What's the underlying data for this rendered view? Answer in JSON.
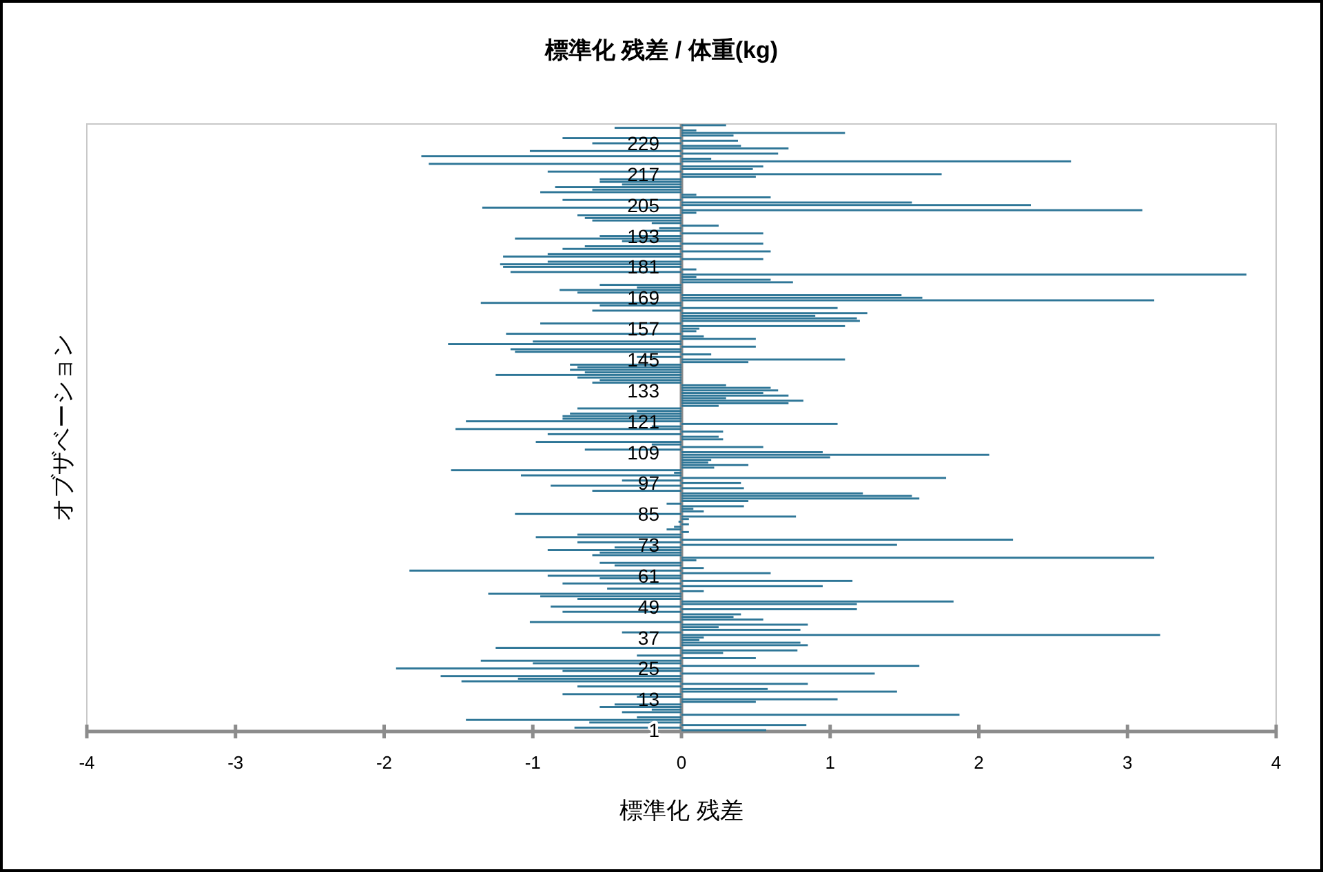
{
  "chart_data": {
    "type": "bar",
    "orientation": "horizontal",
    "title": "標準化 残差 / 体重(kg)",
    "xlabel": "標準化 残差",
    "ylabel": "オブザベーション",
    "color": "#2e7697",
    "xlim": [
      -4,
      4
    ],
    "xticks": [
      -4,
      -3,
      -2,
      -1,
      0,
      1,
      2,
      3,
      4
    ],
    "categories": [
      null,
      null,
      null,
      null,
      null,
      null,
      null,
      "229",
      null,
      null,
      null,
      null,
      null,
      null,
      null,
      null,
      null,
      null,
      null,
      "217",
      null,
      null,
      null,
      null,
      null,
      null,
      null,
      null,
      null,
      null,
      null,
      "205",
      null,
      null,
      null,
      null,
      null,
      null,
      null,
      null,
      null,
      null,
      null,
      "193",
      null,
      null,
      null,
      null,
      null,
      null,
      null,
      null,
      null,
      null,
      null,
      "181",
      null,
      null,
      null,
      null,
      null,
      null,
      null,
      null,
      null,
      null,
      null,
      "169",
      null,
      null,
      null,
      null,
      null,
      null,
      null,
      null,
      null,
      null,
      null,
      "157",
      null,
      null,
      null,
      null,
      null,
      null,
      null,
      null,
      null,
      null,
      null,
      "145",
      null,
      null,
      null,
      null,
      null,
      null,
      null,
      null,
      null,
      null,
      null,
      "133",
      null,
      null,
      null,
      null,
      null,
      null,
      null,
      null,
      null,
      null,
      null,
      "121",
      null,
      null,
      null,
      null,
      null,
      null,
      null,
      null,
      null,
      null,
      null,
      "109",
      null,
      null,
      null,
      null,
      null,
      null,
      null,
      null,
      null,
      null,
      null,
      "97",
      null,
      null,
      null,
      null,
      null,
      null,
      null,
      null,
      null,
      null,
      null,
      "85",
      null,
      null,
      null,
      null,
      null,
      null,
      null,
      null,
      null,
      null,
      null,
      "73",
      null,
      null,
      null,
      null,
      null,
      null,
      null,
      null,
      null,
      null,
      null,
      "61",
      null,
      null,
      null,
      null,
      null,
      null,
      null,
      null,
      null,
      null,
      null,
      "49",
      null,
      null,
      null,
      null,
      null,
      null,
      null,
      null,
      null,
      null,
      null,
      "37",
      null,
      null,
      null,
      null,
      null,
      null,
      null,
      null,
      null,
      null,
      null,
      "25",
      null,
      null,
      null,
      null,
      null,
      null,
      null,
      null,
      null,
      null,
      null,
      "13",
      null,
      null,
      null,
      null,
      null,
      null,
      null,
      null,
      null,
      null,
      null,
      "1"
    ],
    "values": [
      0.3,
      -0.45,
      0.1,
      1.1,
      0.35,
      -0.8,
      0.38,
      -0.6,
      0.4,
      0.72,
      -1.02,
      0.65,
      -1.75,
      0.2,
      2.62,
      -1.7,
      0.55,
      0.48,
      -0.9,
      1.75,
      0.5,
      -0.55,
      -0.55,
      -0.4,
      -0.85,
      -0.6,
      -0.95,
      0.1,
      0.6,
      -0.8,
      1.55,
      2.35,
      -1.34,
      3.1,
      0.1,
      -0.7,
      -0.65,
      -0.6,
      -0.2,
      0.25,
      -0.15,
      -0.25,
      0.55,
      -0.55,
      -1.12,
      -0.4,
      0.55,
      -0.65,
      -0.8,
      0.6,
      -0.9,
      -1.2,
      0.55,
      -0.9,
      -1.22,
      -1.2,
      0.1,
      -1.15,
      3.8,
      0.1,
      0.6,
      0.75,
      -0.55,
      -0.3,
      -0.82,
      -0.7,
      1.48,
      1.62,
      3.18,
      -1.35,
      -0.55,
      1.05,
      -0.6,
      1.25,
      0.9,
      1.18,
      1.2,
      -0.95,
      1.1,
      0.12,
      0.1,
      -1.18,
      0.15,
      0.5,
      -1.0,
      -1.57,
      0.5,
      -1.15,
      -1.12,
      0.2,
      -0.3,
      1.1,
      0.45,
      -0.75,
      -0.7,
      -0.75,
      -0.65,
      -1.25,
      -0.7,
      -0.55,
      -0.6,
      0.3,
      0.6,
      0.65,
      0.55,
      0.72,
      0.3,
      0.82,
      0.72,
      0.25,
      -0.7,
      -0.3,
      -0.75,
      -0.8,
      -0.8,
      -1.45,
      1.05,
      -0.2,
      -1.52,
      0.28,
      -0.9,
      0.25,
      0.28,
      -0.98,
      -0.2,
      0.55,
      -0.65,
      0.95,
      2.07,
      1.0,
      0.2,
      0.18,
      0.45,
      0.22,
      -1.55,
      -0.05,
      -1.08,
      1.78,
      -0.4,
      0.4,
      -0.88,
      0.42,
      -0.6,
      1.22,
      1.55,
      1.6,
      0.45,
      -0.1,
      0.42,
      0.08,
      0.15,
      -1.12,
      0.77,
      0.05,
      -0.02,
      0.05,
      -0.05,
      -0.1,
      0.05,
      -0.7,
      -0.98,
      2.23,
      -0.7,
      1.45,
      -0.45,
      -0.9,
      -0.55,
      -0.6,
      3.18,
      0.1,
      -0.55,
      -0.45,
      0.15,
      -1.83,
      0.6,
      -0.9,
      -0.55,
      1.15,
      -0.8,
      0.95,
      -0.5,
      0.15,
      -1.3,
      -0.95,
      -0.7,
      1.83,
      1.18,
      -0.88,
      1.18,
      -0.8,
      0.4,
      0.35,
      0.55,
      -1.02,
      0.85,
      0.25,
      0.8,
      -0.4,
      3.22,
      0.15,
      0.12,
      0.8,
      0.85,
      -1.25,
      0.78,
      0.28,
      -0.3,
      0.5,
      -1.35,
      -1.0,
      1.6,
      -1.92,
      -0.8,
      1.3,
      -1.62,
      -1.1,
      -1.48,
      0.85,
      -0.7,
      0.58,
      1.45,
      -0.8,
      -0.3,
      1.05,
      0.5,
      -0.45,
      -0.55,
      -0.2,
      -0.4,
      1.87,
      -0.3,
      -1.45,
      -0.62,
      0.84,
      -0.72,
      0.57
    ]
  }
}
